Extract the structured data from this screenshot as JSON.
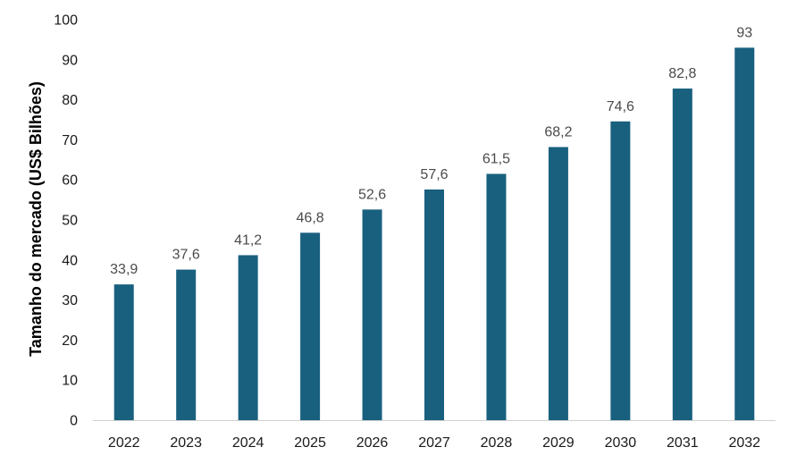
{
  "chart_data": {
    "type": "bar",
    "categories": [
      "2022",
      "2023",
      "2024",
      "2025",
      "2026",
      "2027",
      "2028",
      "2029",
      "2030",
      "2031",
      "2032"
    ],
    "values": [
      33.9,
      37.6,
      41.2,
      46.8,
      52.6,
      57.6,
      61.5,
      68.2,
      74.6,
      82.8,
      93
    ],
    "data_labels": [
      "33,9",
      "37,6",
      "41,2",
      "46,8",
      "52,6",
      "57,6",
      "61,5",
      "68,2",
      "74,6",
      "82,8",
      "93"
    ],
    "title": "",
    "xlabel": "",
    "ylabel": "Tamanho do mercado (US$ Bilhões)",
    "ylim": [
      0,
      100
    ],
    "yticks": [
      0,
      10,
      20,
      30,
      40,
      50,
      60,
      70,
      80,
      90,
      100
    ],
    "grid": false,
    "legend": "none",
    "bar_color": "#19607f",
    "axis_color": "#d0d0d0"
  }
}
